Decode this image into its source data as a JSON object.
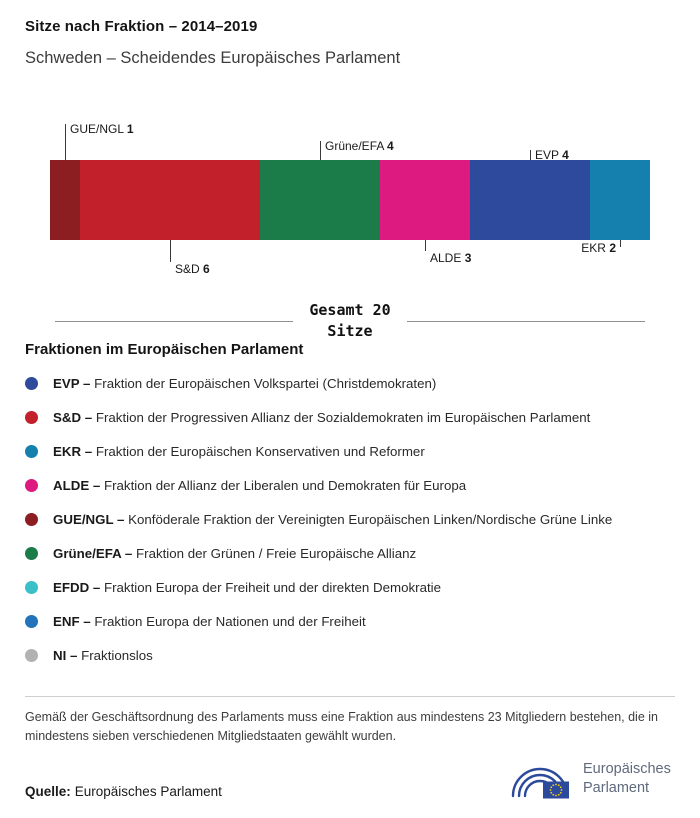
{
  "header": {
    "title": "Sitze nach Fraktion – 2014–2019",
    "subtitle": "Schweden – Scheidendes Europäisches Parlament"
  },
  "chart_data": {
    "type": "bar",
    "subtype": "stacked-horizontal",
    "title": "Sitze nach Fraktion – 2014–2019",
    "subtitle": "Schweden – Scheidendes Europäisches Parlament",
    "total": 20,
    "unit": "Sitze",
    "total_label_lines": [
      "Gesamt 20",
      "Sitze"
    ],
    "segments": [
      {
        "name": "GUE/NGL",
        "value": 1,
        "color": "#8c1d20",
        "callout": {
          "side": "above",
          "len": 36
        }
      },
      {
        "name": "S&D",
        "value": 6,
        "color": "#c2202a",
        "callout": {
          "side": "below",
          "len": 22
        }
      },
      {
        "name": "Grüne/EFA",
        "value": 4,
        "color": "#1b7b49",
        "callout": {
          "side": "above",
          "len": 19
        }
      },
      {
        "name": "ALDE",
        "value": 3,
        "color": "#dd1a80",
        "callout": {
          "side": "below",
          "len": 11
        }
      },
      {
        "name": "EVP",
        "value": 4,
        "color": "#2e4a9c",
        "callout": {
          "side": "above",
          "len": 10
        }
      },
      {
        "name": "EKR",
        "value": 2,
        "color": "#157fad",
        "callout": {
          "side": "below",
          "len": 7,
          "beside": true,
          "align": "left"
        }
      }
    ]
  },
  "total": {
    "line1": "Gesamt 20",
    "line2": "Sitze"
  },
  "legend": {
    "heading": "Fraktionen im Europäischen Parlament",
    "items": [
      {
        "abbr": "EVP",
        "desc": "Fraktion der Europäischen Volkspartei (Christdemokraten)",
        "color": "#2e4a9c"
      },
      {
        "abbr": "S&D",
        "desc": "Fraktion der Progressiven Allianz der Sozialdemokraten im Europäischen Parlament",
        "color": "#c2202a"
      },
      {
        "abbr": "EKR",
        "desc": "Fraktion der Europäischen Konservativen und Reformer",
        "color": "#157fad"
      },
      {
        "abbr": "ALDE",
        "desc": "Fraktion der Allianz der Liberalen und Demokraten für Europa",
        "color": "#dd1a80"
      },
      {
        "abbr": "GUE/NGL",
        "desc": "Konföderale Fraktion der Vereinigten Europäischen Linken/Nordische Grüne Linke",
        "color": "#8c1d20"
      },
      {
        "abbr": "Grüne/EFA",
        "desc": "Fraktion der Grünen / Freie Europäische Allianz",
        "color": "#1b7b49"
      },
      {
        "abbr": "EFDD",
        "desc": "Fraktion Europa der Freiheit und der direkten Demokratie",
        "color": "#3bbfc9"
      },
      {
        "abbr": "ENF",
        "desc": "Fraktion Europa der Nationen und der Freiheit",
        "color": "#2273b9"
      },
      {
        "abbr": "NI",
        "desc": "Fraktionslos",
        "color": "#b2b2b2"
      }
    ]
  },
  "footnote": "Gemäß der Geschäftsordnung des Parlaments muss eine Fraktion aus mindestens 23 Mitgliedern bestehen, die in mindestens sieben verschiedenen Mitgliedstaaten gewählt wurden.",
  "source": {
    "label": "Quelle:",
    "value": "Europäisches Parlament"
  },
  "logo": {
    "line1": "Europäisches",
    "line2": "Parlament",
    "brand_color": "#2c4a9b",
    "star_color": "#f7d117"
  }
}
